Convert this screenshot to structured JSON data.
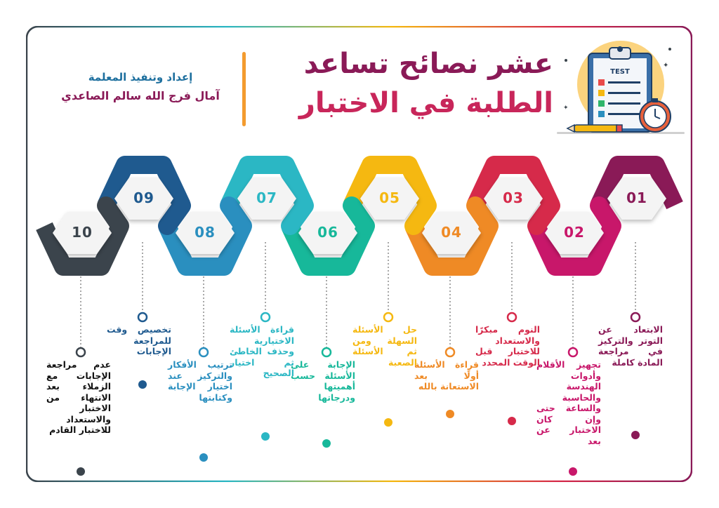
{
  "title": {
    "line1": "عشر نصائح تساعد",
    "line2": "الطلبة في الاختبار"
  },
  "credit": {
    "line1": "إعداد وتنفيذ المعلمة",
    "line2": "آمال فرج الله سالم الصاعدي"
  },
  "illustration": {
    "label": "TEST",
    "icon": "clipboard-checklist-stopwatch-icon"
  },
  "colors": {
    "s01": "#8a1a57",
    "s02": "#c8176a",
    "s03": "#d62a4a",
    "s04": "#ef8a25",
    "s05": "#f5b811",
    "s06": "#17b89a",
    "s07": "#2bb7c4",
    "s08": "#2a8fbf",
    "s09": "#1f5a8f",
    "s10": "#3b444c"
  },
  "steps": [
    {
      "num": "01",
      "text": "الابتعاد عن التوتر والتركيز في مراجعة المادة كاملة"
    },
    {
      "num": "02",
      "text": "تجهيز الأقلام وأدوات الهندسة والحاسبة والساعة حتى وإن كان الاختبار عن بعد"
    },
    {
      "num": "03",
      "text": "النوم مبكرًا والاستعداد للاختبار قبل الوقت المحدد"
    },
    {
      "num": "04",
      "text": "قراءة الأسئلة أولًا بعد الاستعانة بالله"
    },
    {
      "num": "05",
      "text": "حل الأسئلة السهلة ومن ثم الأسئلة الصعبة"
    },
    {
      "num": "06",
      "text": "الإجابة على الأسئلة حسب أهميتها ودرجاتها"
    },
    {
      "num": "07",
      "text": "قراءة الأسئلة الاختيارية وحذف الخاطئ ثم اختيار الصحيح"
    },
    {
      "num": "08",
      "text": "ترتيب الأفكار والتركيز عند اختيار الإجابة وكتابتها"
    },
    {
      "num": "09",
      "text": "تخصيص وقت للمراجعة الإجابات"
    },
    {
      "num": "10",
      "text": "عدم مراجعة الإجابات مع الزملاء بعد الانتهاء من الاختبار والاستعداد للاختبار القادم"
    }
  ]
}
